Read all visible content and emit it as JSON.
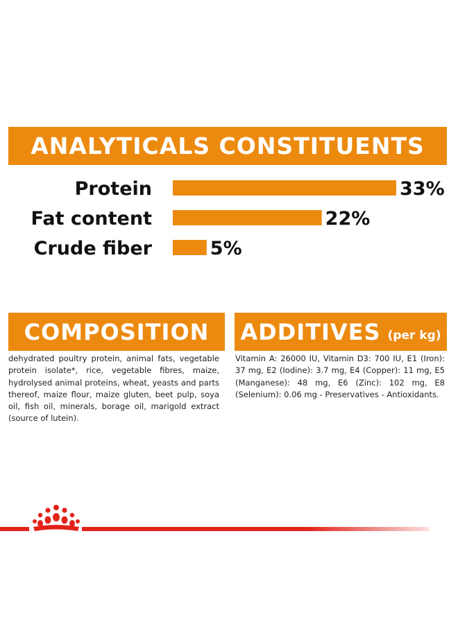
{
  "analytics": {
    "title": "ANALYTICALS CONSTITUENTS"
  },
  "chart_data": {
    "type": "bar",
    "orientation": "horizontal",
    "categories": [
      "Protein",
      "Fat content",
      "Crude fiber"
    ],
    "values": [
      33,
      22,
      5
    ],
    "value_labels": [
      "33%",
      "22%",
      "5%"
    ],
    "unit": "%",
    "title": "ANALYTICALS CONSTITUENTS",
    "color": "#ec8a0f"
  },
  "composition": {
    "title": "COMPOSITION",
    "text": "dehydrated poultry protein, animal fats, vegetable protein isolate*, rice, vegetable fibres, maize, hydrolysed animal proteins, wheat, yeasts and parts thereof, maize flour, maize gluten, beet pulp, soya oil, fish oil, minerals, borage oil, marigold extract (source of lutein)."
  },
  "additives": {
    "title": "ADDITIVES",
    "subtitle": "(per kg)",
    "text": "Vitamin A: 26000 IU, Vitamin D3: 700 IU, E1 (Iron): 37 mg, E2 (Iodine): 3.7 mg, E4 (Copper): 11 mg, E5 (Manganese): 48 mg, E6 (Zinc): 102 mg, E8 (Selenium): 0.06 mg - Preservatives - Antioxidants."
  },
  "footer": {
    "logo": "crown-icon",
    "accent": "#e2231a"
  }
}
